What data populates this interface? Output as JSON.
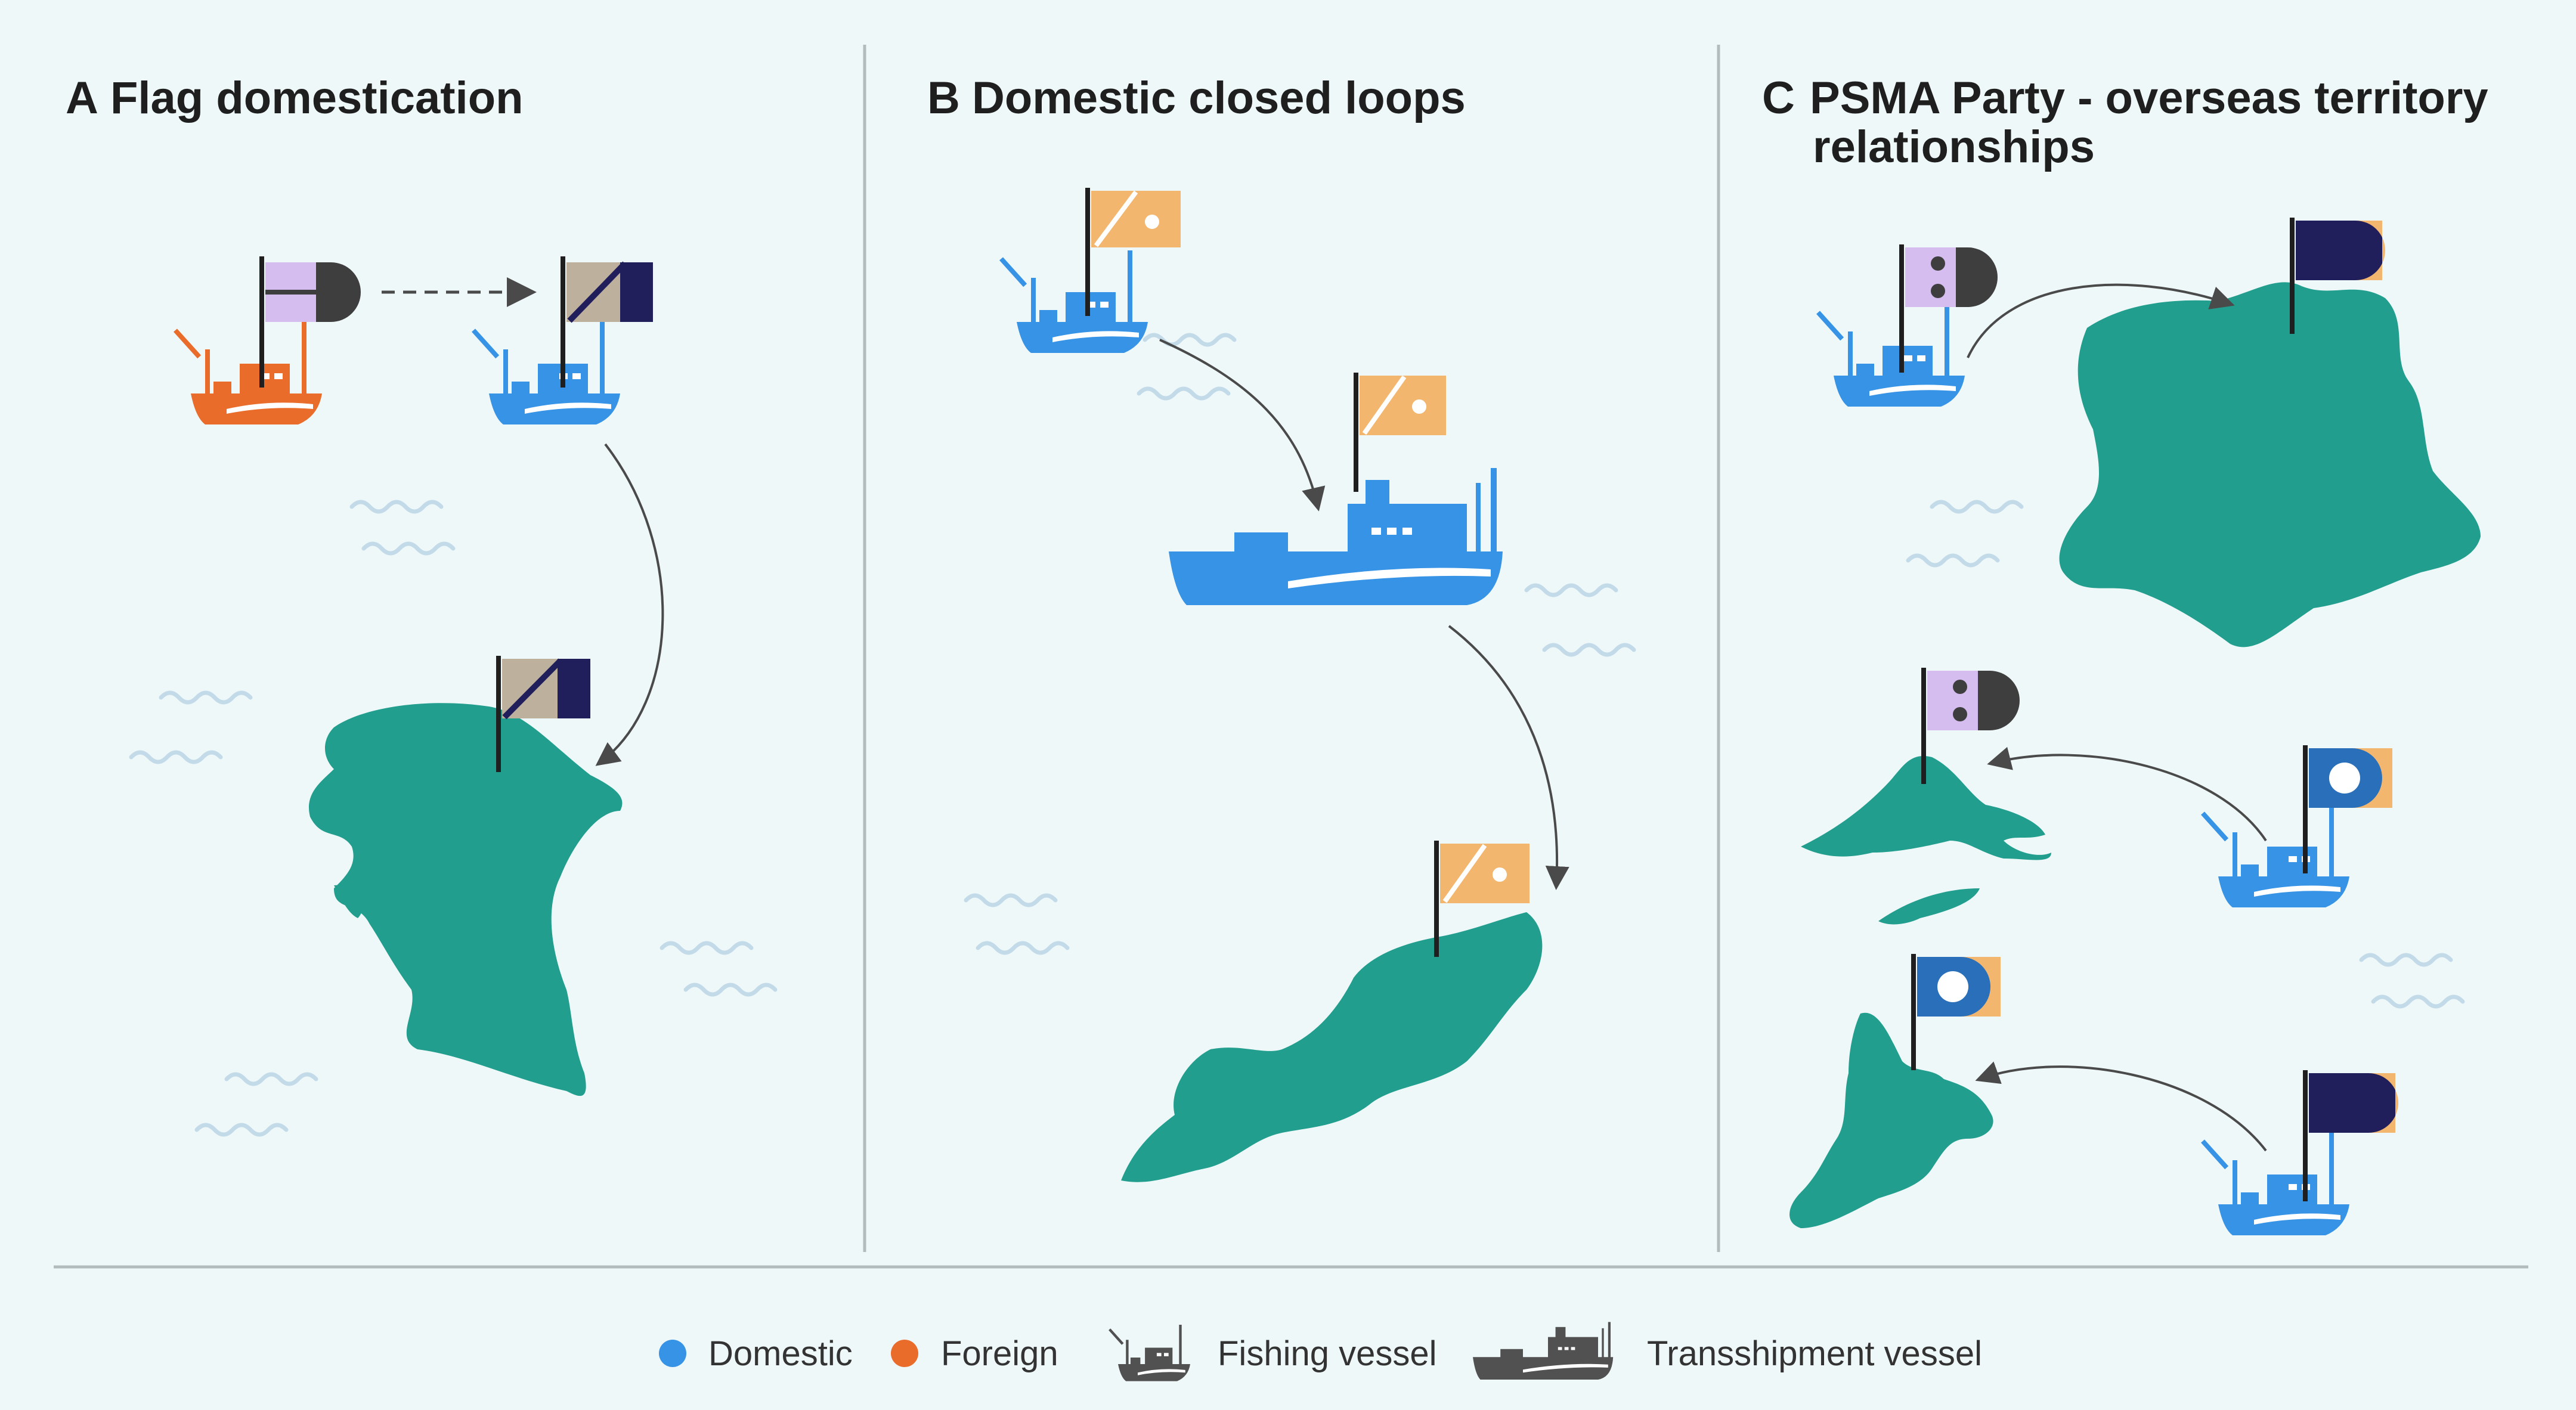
{
  "colors": {
    "background": "#eef8f9",
    "land": "#219e8d",
    "domestic": "#3793e5",
    "foreign": "#ea6c2b",
    "neutral_vessel": "#515151",
    "divider": "#b3bcbc",
    "wave": "#c3dbe9",
    "arrow": "#4a4a4a",
    "flag_lavender": "#d6bdef",
    "flag_dark": "#3e3e3e",
    "flag_tan": "#bdb19e",
    "flag_navy": "#211f5b",
    "flag_orange": "#f3b66e",
    "flag_blue": "#2a6fba",
    "flag_white": "#ffffff"
  },
  "panels": [
    {
      "letter": "A",
      "title": "Flag domestication",
      "title_line2": ""
    },
    {
      "letter": "B",
      "title": "Domestic closed loops",
      "title_line2": ""
    },
    {
      "letter": "C",
      "title": "PSMA Party - overseas territory",
      "title_line2": "relationships"
    }
  ],
  "legend": {
    "domestic_label": "Domestic",
    "foreign_label": "Foreign",
    "fishing_vessel_label": "Fishing vessel",
    "transshipment_vessel_label": "Transshipment vessel"
  }
}
